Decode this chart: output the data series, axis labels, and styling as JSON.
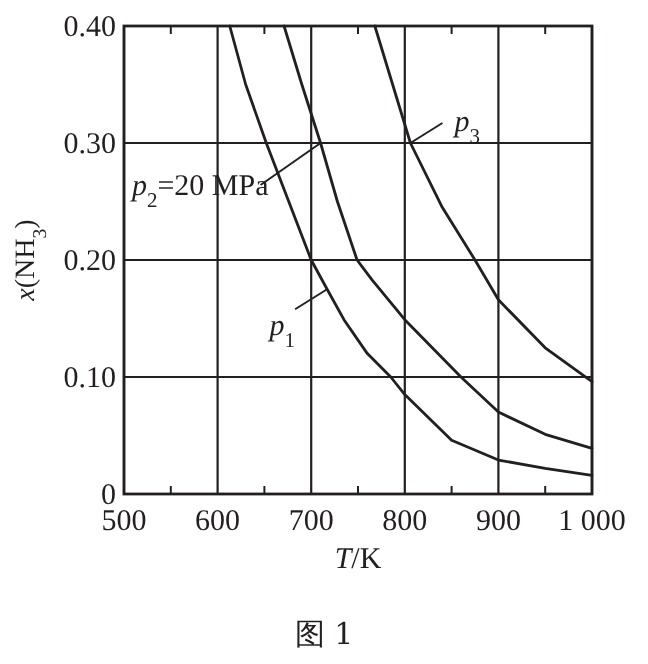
{
  "chart_data": {
    "type": "line",
    "xlabel": "*T*/K",
    "ylabel": "*x*(NH$_{3}$)",
    "xlim": [
      500,
      1000
    ],
    "ylim": [
      0,
      0.4
    ],
    "xticks": [
      500,
      {
        "value": 550,
        "label": null
      },
      600,
      {
        "value": 650,
        "label": null
      },
      700,
      {
        "value": 750,
        "label": null
      },
      800,
      {
        "value": 850,
        "label": null
      },
      900,
      {
        "value": 950,
        "label": null
      },
      {
        "value": 1000,
        "label": "1 000"
      }
    ],
    "yticks": [
      0,
      {
        "value": 0.1,
        "label": "0.10"
      },
      {
        "value": 0.2,
        "label": "0.20"
      },
      {
        "value": 0.3,
        "label": "0.30"
      },
      {
        "value": 0.4,
        "label": "0.40"
      }
    ],
    "grid": true,
    "marker": "none",
    "line_style": "solid",
    "series": [
      {
        "name": "*p*$_{1}$",
        "color": "#231f20",
        "x": [
          613,
          630,
          652,
          676,
          700,
          717,
          735,
          760,
          785,
          800,
          850,
          900,
          950,
          1000
        ],
        "values": [
          0.4,
          0.35,
          0.3,
          0.25,
          0.2,
          0.175,
          0.149,
          0.12,
          0.1,
          0.085,
          0.046,
          0.029,
          0.022,
          0.016
        ]
      },
      {
        "name": "*p*$_{2}$=20 MPa",
        "color": "#231f20",
        "x": [
          671,
          690,
          710,
          728,
          749,
          765,
          800,
          860,
          900,
          950,
          1000
        ],
        "values": [
          0.4,
          0.35,
          0.3,
          0.25,
          0.2,
          0.183,
          0.149,
          0.1,
          0.07,
          0.051,
          0.039
        ]
      },
      {
        "name": "*p*$_{3}$",
        "color": "#231f20",
        "x": [
          768,
          806,
          840,
          875,
          900,
          950,
          1000
        ],
        "values": [
          0.4,
          0.3,
          0.245,
          0.2,
          0.166,
          0.125,
          0.096
        ]
      }
    ],
    "annotations": [
      "图 1"
    ]
  }
}
